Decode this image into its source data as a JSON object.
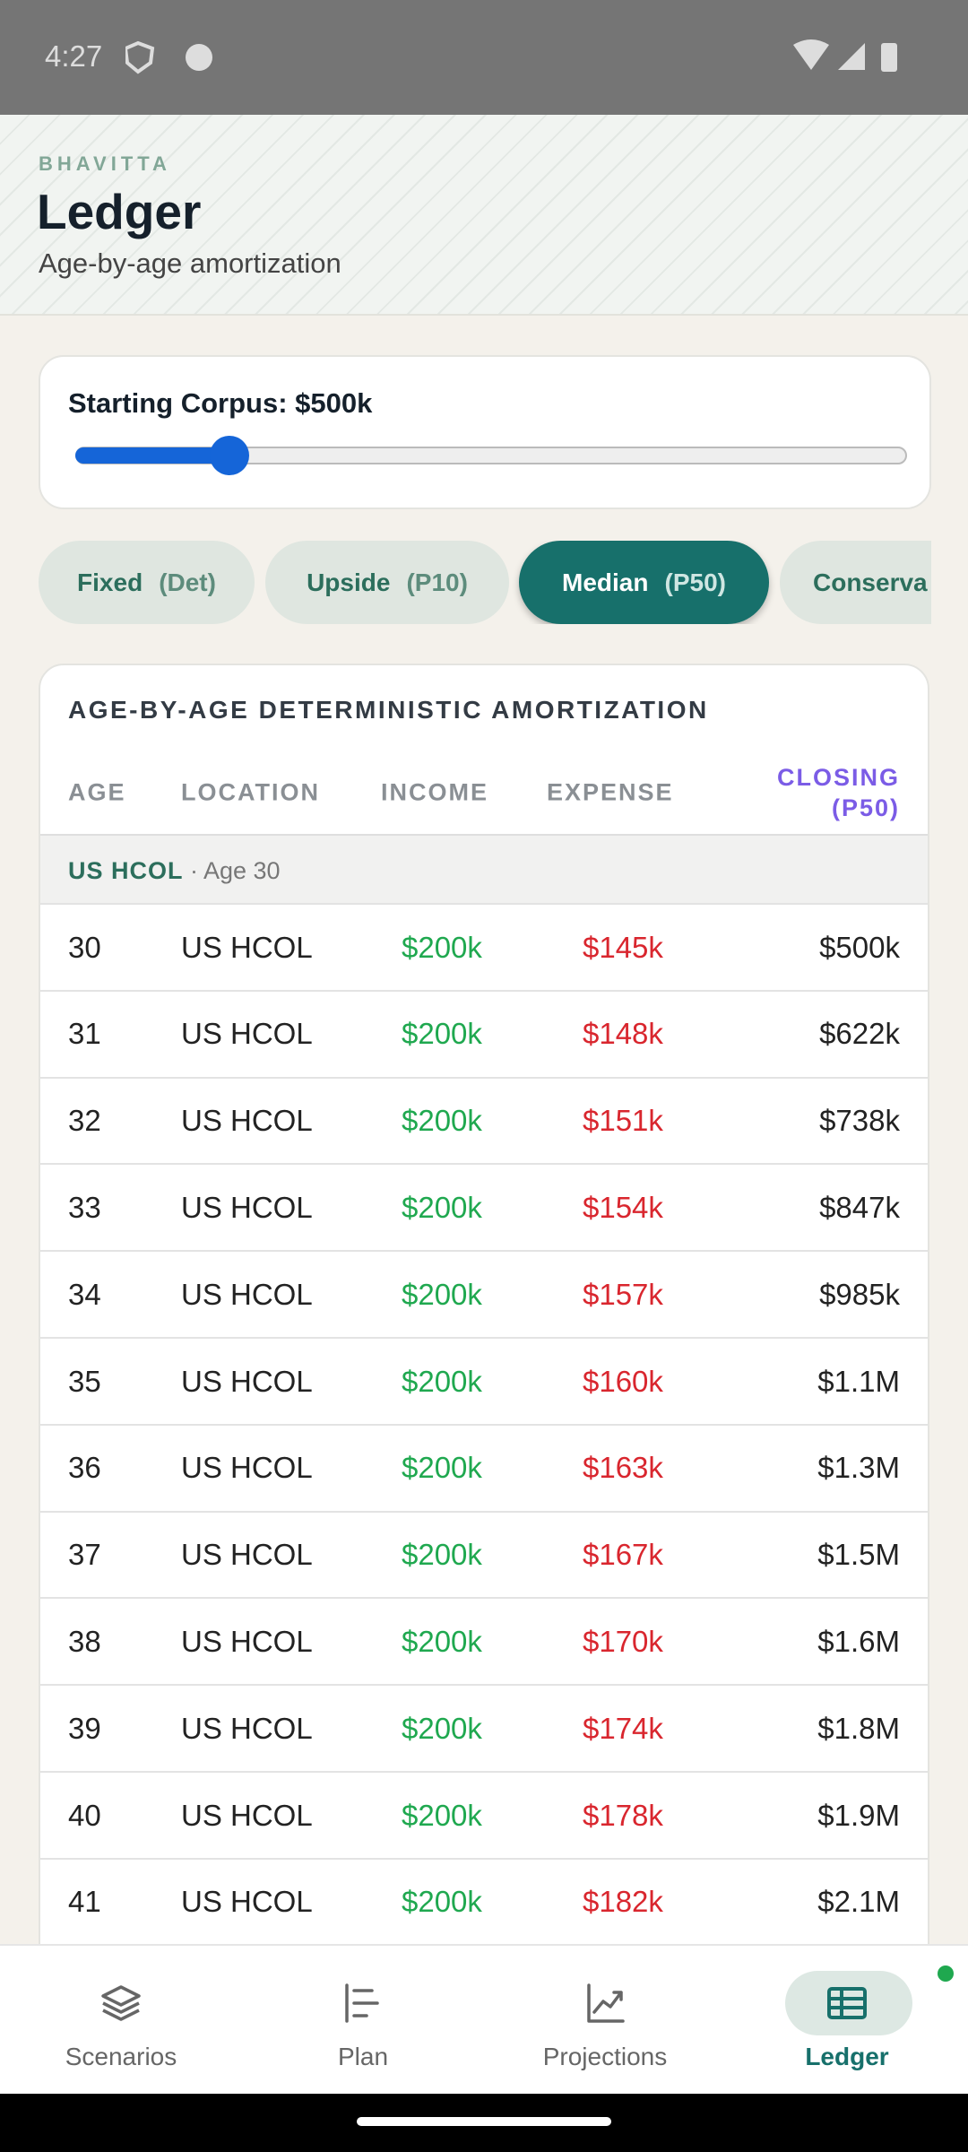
{
  "status": {
    "time": "4:27"
  },
  "header": {
    "brand": "BHAVITTA",
    "title": "Ledger",
    "subtitle": "Age-by-age amortization"
  },
  "corpus": {
    "label": "Starting Corpus: $500k"
  },
  "tabs": [
    {
      "name": "Fixed",
      "tag": "(Det)"
    },
    {
      "name": "Upside",
      "tag": "(P10)"
    },
    {
      "name": "Median",
      "tag": "(P50)"
    },
    {
      "name": "Conserva",
      "tag": ""
    }
  ],
  "table": {
    "title": "AGE-BY-AGE DETERMINISTIC AMORTIZATION",
    "columns": [
      "AGE",
      "LOCATION",
      "INCOME",
      "EXPENSE",
      "CLOSING",
      "(P50)"
    ],
    "group": {
      "location": "US HCOL",
      "note": "· Age 30"
    },
    "rows": [
      [
        "30",
        "US HCOL",
        "$200k",
        "$145k",
        "$500k"
      ],
      [
        "31",
        "US HCOL",
        "$200k",
        "$148k",
        "$622k"
      ],
      [
        "32",
        "US HCOL",
        "$200k",
        "$151k",
        "$738k"
      ],
      [
        "33",
        "US HCOL",
        "$200k",
        "$154k",
        "$847k"
      ],
      [
        "34",
        "US HCOL",
        "$200k",
        "$157k",
        "$985k"
      ],
      [
        "35",
        "US HCOL",
        "$200k",
        "$160k",
        "$1.1M"
      ],
      [
        "36",
        "US HCOL",
        "$200k",
        "$163k",
        "$1.3M"
      ],
      [
        "37",
        "US HCOL",
        "$200k",
        "$167k",
        "$1.5M"
      ],
      [
        "38",
        "US HCOL",
        "$200k",
        "$170k",
        "$1.6M"
      ],
      [
        "39",
        "US HCOL",
        "$200k",
        "$174k",
        "$1.8M"
      ],
      [
        "40",
        "US HCOL",
        "$200k",
        "$178k",
        "$1.9M"
      ],
      [
        "41",
        "US HCOL",
        "$200k",
        "$182k",
        "$2.1M"
      ]
    ]
  },
  "nav": [
    "Scenarios",
    "Plan",
    "Projections",
    "Ledger"
  ]
}
